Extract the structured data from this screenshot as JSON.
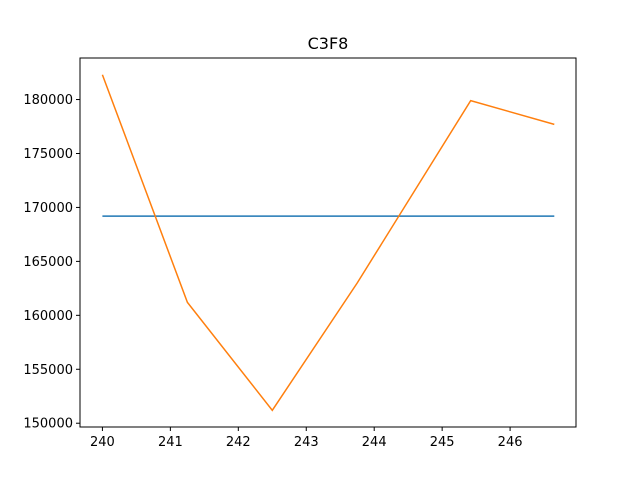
{
  "chart_data": {
    "type": "line",
    "title": "C3F8",
    "xlabel": "",
    "ylabel": "",
    "xlim": [
      239.67,
      246.97
    ],
    "ylim": [
      149650,
      183850
    ],
    "xticks": [
      240,
      241,
      242,
      243,
      244,
      245,
      246
    ],
    "yticks": [
      150000,
      155000,
      160000,
      165000,
      170000,
      175000,
      180000
    ],
    "grid": false,
    "series": [
      {
        "color": "#1f77b4",
        "x": [
          240,
          246.65
        ],
        "y": [
          169200,
          169200
        ]
      },
      {
        "color": "#ff7f0e",
        "x": [
          240,
          241.25,
          242.5,
          243.75,
          245.42,
          246.65
        ],
        "y": [
          182300,
          161200,
          151200,
          163000,
          179900,
          177700
        ]
      }
    ]
  }
}
